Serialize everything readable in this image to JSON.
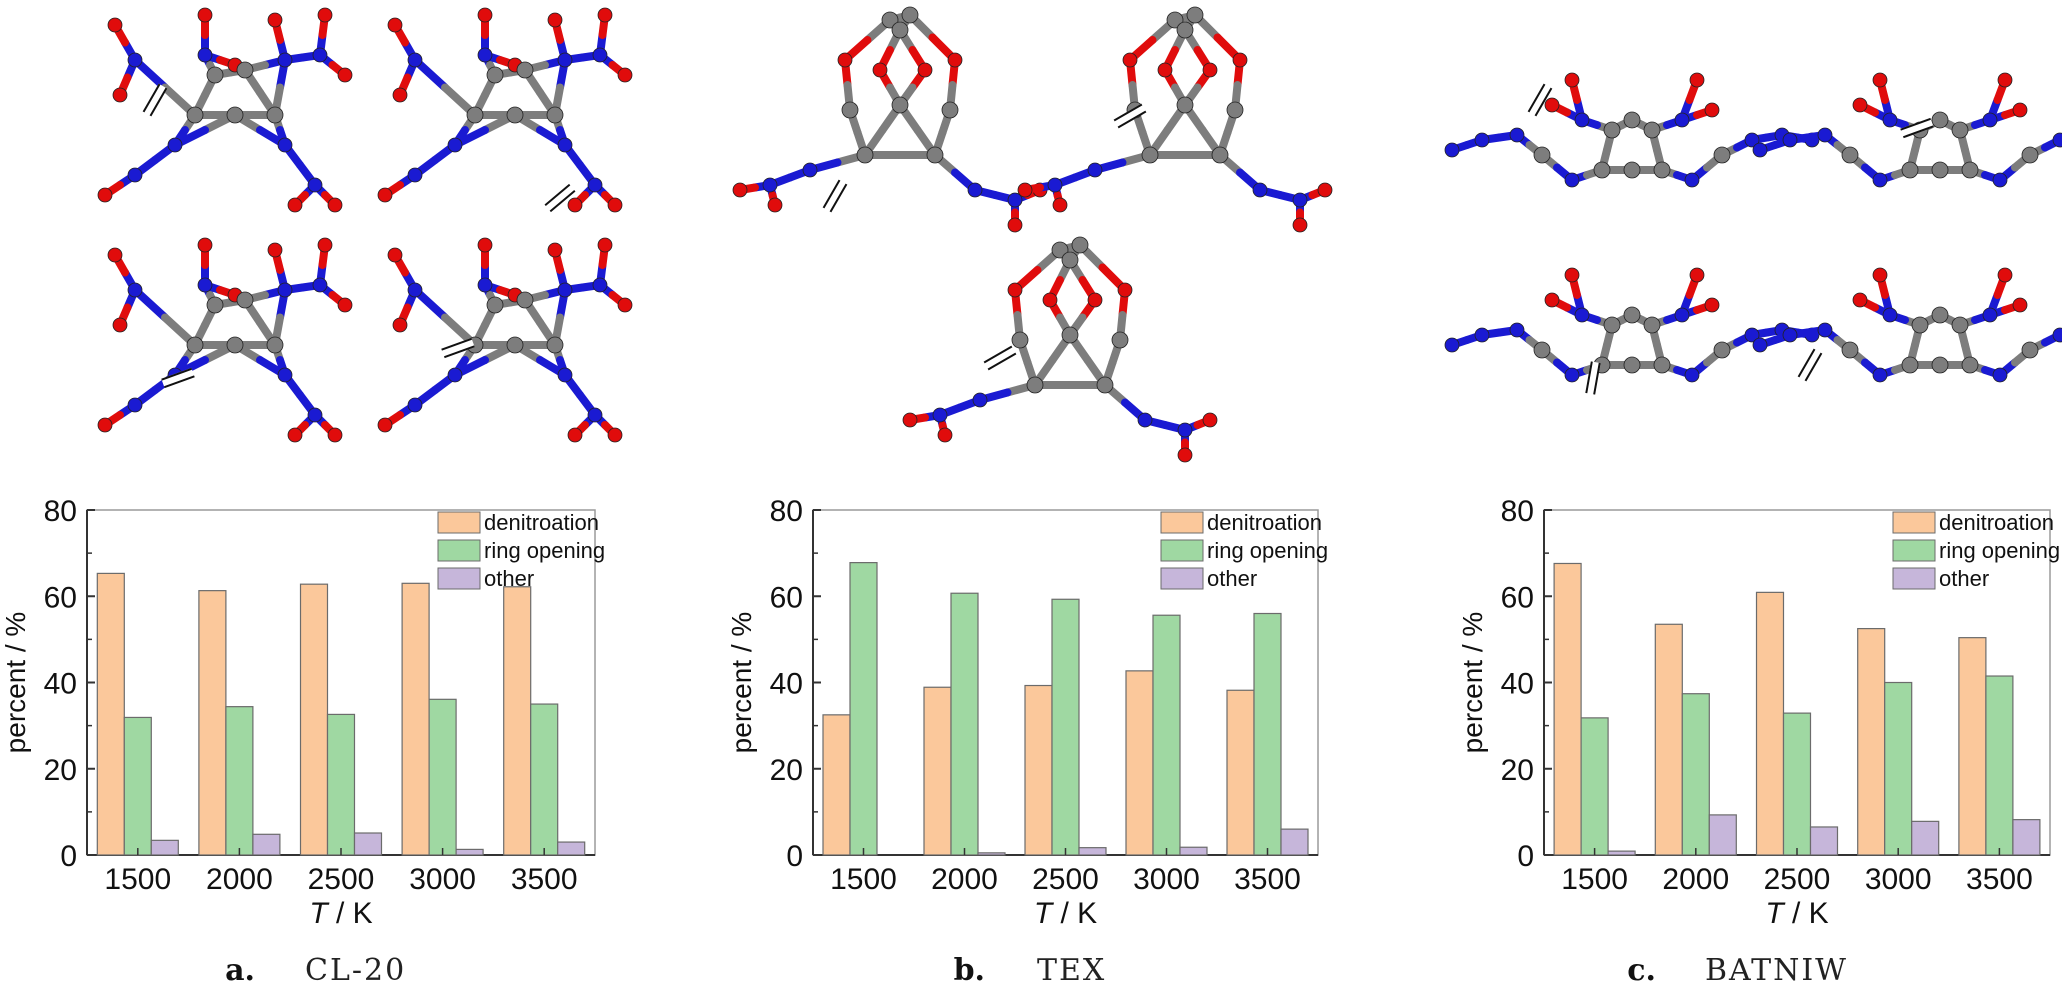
{
  "colors": {
    "denitroation": "#FBC89B",
    "ring_opening": "#9FD8A2",
    "other": "#C6B6DA",
    "bar_stroke": "#6b6b6b",
    "atom_nitrogen": "#1a1ad2",
    "atom_oxygen": "#e00c0c",
    "atom_carbon": "#7d7d7d"
  },
  "chart_data": [
    {
      "type": "bar",
      "panel": "a",
      "compound": "CL-20",
      "caption_letter": "a.",
      "caption_name": "CL-20",
      "categories": [
        "1500",
        "2000",
        "2500",
        "3000",
        "3500"
      ],
      "series": [
        {
          "name": "denitroation",
          "values": [
            65.3,
            61.3,
            62.8,
            63.0,
            62.2
          ]
        },
        {
          "name": "ring opening",
          "values": [
            31.9,
            34.4,
            32.6,
            36.1,
            35.0
          ]
        },
        {
          "name": "other",
          "values": [
            3.4,
            4.8,
            5.1,
            1.3,
            3.0
          ]
        }
      ],
      "ylabel": "percent / %",
      "xlabel_italic": "T",
      "xlabel_rest": " / K",
      "ylim": [
        0,
        80
      ],
      "yticks": [
        "0",
        "20",
        "40",
        "60",
        "80"
      ],
      "legend_placement": "top-right"
    },
    {
      "type": "bar",
      "panel": "b",
      "compound": "TEX",
      "caption_letter": "b.",
      "caption_name": "TEX",
      "categories": [
        "1500",
        "2000",
        "2500",
        "3000",
        "3500"
      ],
      "series": [
        {
          "name": "denitroation",
          "values": [
            32.5,
            38.9,
            39.3,
            42.7,
            38.2
          ]
        },
        {
          "name": "ring opening",
          "values": [
            67.8,
            60.7,
            59.3,
            55.6,
            56.0
          ]
        },
        {
          "name": "other",
          "values": [
            0.0,
            0.5,
            1.7,
            1.8,
            6.0
          ]
        }
      ],
      "ylabel": "percent / %",
      "xlabel_italic": "T",
      "xlabel_rest": " / K",
      "ylim": [
        0,
        80
      ],
      "yticks": [
        "0",
        "20",
        "40",
        "60",
        "80"
      ],
      "legend_placement": "top-right"
    },
    {
      "type": "bar",
      "panel": "c",
      "compound": "BATNIW",
      "caption_letter": "c.",
      "caption_name": "BATNIW",
      "categories": [
        "1500",
        "2000",
        "2500",
        "3000",
        "3500"
      ],
      "series": [
        {
          "name": "denitroation",
          "values": [
            67.6,
            53.5,
            60.9,
            52.5,
            50.4
          ]
        },
        {
          "name": "ring opening",
          "values": [
            31.8,
            37.4,
            32.9,
            40.0,
            41.5
          ]
        },
        {
          "name": "other",
          "values": [
            0.9,
            9.3,
            6.5,
            7.8,
            8.2
          ]
        }
      ],
      "ylabel": "percent / %",
      "xlabel_italic": "T",
      "xlabel_rest": " / K",
      "ylim": [
        0,
        80
      ],
      "yticks": [
        "0",
        "20",
        "40",
        "60",
        "80"
      ],
      "legend_placement": "top-right"
    }
  ]
}
